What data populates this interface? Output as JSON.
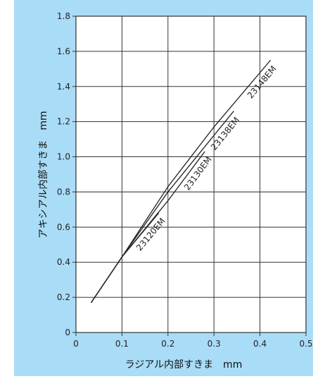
{
  "page": {
    "background_color": "#a9dcf7"
  },
  "chart_data": {
    "type": "line",
    "xlabel": "ラジアル内部すきま　mm",
    "ylabel": "アキシアル内部すきま　mm",
    "xlim": [
      0,
      0.5
    ],
    "ylim": [
      0,
      1.8
    ],
    "x_ticks": [
      "0",
      "0.1",
      "0.2",
      "0.3",
      "0.4",
      "0.5"
    ],
    "y_ticks": [
      "0",
      "0.2",
      "0.4",
      "0.6",
      "0.8",
      "1.0",
      "1.2",
      "1.4",
      "1.6",
      "1.8"
    ],
    "grid": true,
    "series": [
      {
        "name": "23120EM",
        "points": [
          [
            0.033,
            0.17
          ],
          [
            0.1,
            0.43
          ],
          [
            0.18,
            0.68
          ]
        ]
      },
      {
        "name": "23130EM",
        "points": [
          [
            0.033,
            0.17
          ],
          [
            0.1,
            0.43
          ],
          [
            0.2,
            0.75
          ],
          [
            0.28,
            1.03
          ]
        ]
      },
      {
        "name": "23138EM",
        "points": [
          [
            0.033,
            0.17
          ],
          [
            0.1,
            0.43
          ],
          [
            0.2,
            0.8
          ],
          [
            0.343,
            1.26
          ]
        ]
      },
      {
        "name": "23148EM",
        "points": [
          [
            0.033,
            0.17
          ],
          [
            0.1,
            0.43
          ],
          [
            0.2,
            0.83
          ],
          [
            0.3,
            1.17
          ],
          [
            0.423,
            1.55
          ]
        ]
      }
    ],
    "line_color": "#222222",
    "grid_color": "#333333",
    "plot_background": "#ffffff"
  }
}
